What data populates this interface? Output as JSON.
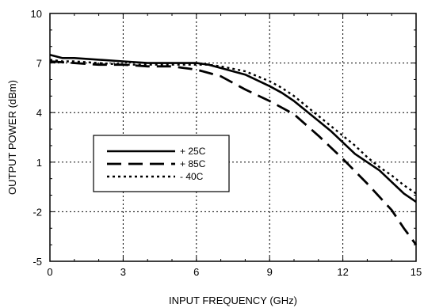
{
  "chart_data": {
    "type": "line",
    "title": "",
    "xlabel": "INPUT  FREQUENCY (GHz)",
    "ylabel": "OUTPUT POWER (dBm)",
    "xlim": [
      0,
      15
    ],
    "ylim": [
      -5,
      10
    ],
    "xticks": [
      0,
      3,
      6,
      9,
      12,
      15
    ],
    "yticks": [
      -5,
      -2,
      1,
      4,
      7,
      10
    ],
    "xtick_labels": [
      "0",
      "3",
      "6",
      "9",
      "12",
      "15"
    ],
    "ytick_labels": [
      "-5",
      "-2",
      "1",
      "4",
      "7",
      "10"
    ],
    "grid": true,
    "legend_position": "left-center",
    "series": [
      {
        "name": "+ 25C",
        "style": "solid",
        "x": [
          0,
          0.5,
          1,
          2,
          3,
          4,
          5,
          6,
          6.5,
          7,
          8,
          9,
          9.5,
          10,
          10.5,
          11,
          11.5,
          12,
          12.5,
          13,
          13.5,
          14,
          14.5,
          15
        ],
        "y": [
          7.5,
          7.3,
          7.3,
          7.2,
          7.1,
          7.0,
          7.0,
          7.0,
          6.9,
          6.7,
          6.3,
          5.6,
          5.2,
          4.7,
          4.1,
          3.5,
          2.9,
          2.2,
          1.5,
          1.0,
          0.5,
          -0.2,
          -0.9,
          -1.4
        ]
      },
      {
        "name": "+ 85C",
        "style": "dashed",
        "x": [
          0,
          1,
          2,
          3,
          4,
          5,
          6,
          7,
          8,
          9,
          10,
          11,
          12,
          13,
          14,
          14.5,
          15
        ],
        "y": [
          7.1,
          7.0,
          6.9,
          6.9,
          6.8,
          6.8,
          6.6,
          6.2,
          5.4,
          4.7,
          3.9,
          2.6,
          1.2,
          -0.3,
          -1.9,
          -3.0,
          -4.0
        ]
      },
      {
        "name": "- 40C",
        "style": "dotted",
        "x": [
          0,
          0.5,
          1,
          2,
          3,
          4,
          5,
          6,
          6.5,
          7,
          8,
          9,
          9.5,
          10,
          10.5,
          11,
          11.5,
          12,
          12.5,
          13,
          13.5,
          14,
          14.5,
          15
        ],
        "y": [
          7.2,
          7.1,
          7.1,
          7.0,
          6.9,
          6.9,
          6.9,
          6.9,
          6.9,
          6.8,
          6.5,
          5.9,
          5.5,
          5.0,
          4.4,
          3.8,
          3.2,
          2.6,
          2.0,
          1.3,
          0.7,
          0.2,
          -0.4,
          -0.9
        ]
      }
    ]
  }
}
